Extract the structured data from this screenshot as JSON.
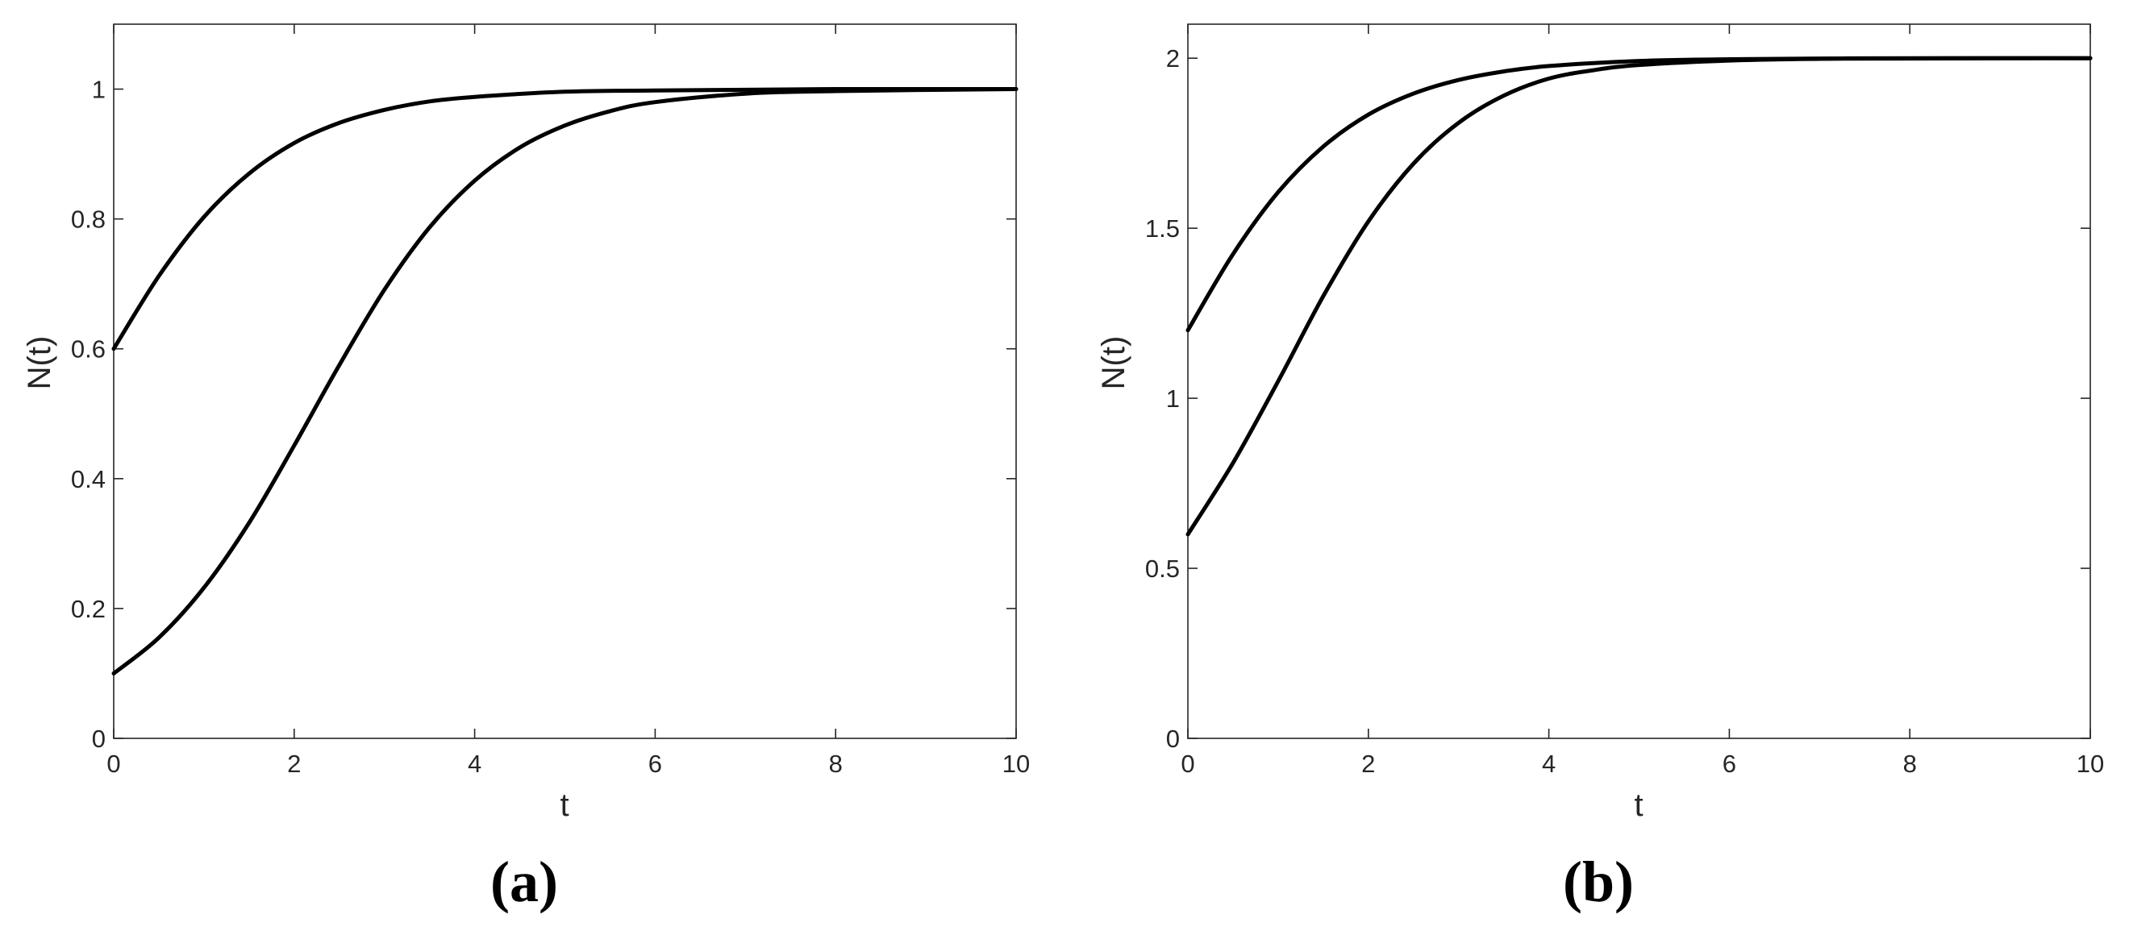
{
  "chart_data": [
    {
      "type": "line",
      "xlabel": "t",
      "ylabel": "N(t)",
      "panel_label": "(a)",
      "xlim": [
        0,
        10
      ],
      "ylim": [
        0,
        1.1
      ],
      "xticks": [
        0,
        2,
        4,
        6,
        8,
        10
      ],
      "xtick_labels": [
        "0",
        "2",
        "4",
        "6",
        "8",
        "10"
      ],
      "yticks": [
        0,
        0.2,
        0.4,
        0.6,
        0.8,
        1
      ],
      "ytick_labels": [
        "0",
        "0.2",
        "0.4",
        "0.6",
        "0.8",
        "1"
      ],
      "grid": false,
      "series": [
        {
          "color": "#000000",
          "x": [
            0,
            0.5,
            1,
            1.5,
            2,
            2.5,
            3,
            3.5,
            4,
            5,
            6,
            7,
            8,
            10
          ],
          "y": [
            0.6,
            0.712,
            0.803,
            0.87,
            0.917,
            0.948,
            0.968,
            0.981,
            0.988,
            0.996,
            0.998,
            0.999,
            1.0,
            1.0
          ]
        },
        {
          "color": "#000000",
          "x": [
            0,
            0.5,
            1,
            1.5,
            2,
            2.5,
            3,
            3.5,
            4,
            4.5,
            5,
            5.5,
            6,
            7,
            8,
            10
          ],
          "y": [
            0.1,
            0.155,
            0.232,
            0.332,
            0.451,
            0.575,
            0.691,
            0.787,
            0.859,
            0.91,
            0.944,
            0.966,
            0.98,
            0.993,
            0.997,
            1.0
          ]
        }
      ]
    },
    {
      "type": "line",
      "xlabel": "t",
      "ylabel": "N(t)",
      "panel_label": "(b)",
      "xlim": [
        0,
        10
      ],
      "ylim": [
        0,
        2.1
      ],
      "xticks": [
        0,
        2,
        4,
        6,
        8,
        10
      ],
      "xtick_labels": [
        "0",
        "2",
        "4",
        "6",
        "8",
        "10"
      ],
      "yticks": [
        0,
        0.5,
        1,
        1.5,
        2
      ],
      "ytick_labels": [
        "0",
        "0.5",
        "1",
        "1.5",
        "2"
      ],
      "grid": false,
      "series": [
        {
          "color": "#000000",
          "x": [
            0,
            0.5,
            1,
            1.5,
            2,
            2.5,
            3,
            3.5,
            4,
            5,
            6,
            7,
            8,
            10
          ],
          "y": [
            1.2,
            1.424,
            1.606,
            1.74,
            1.834,
            1.896,
            1.936,
            1.961,
            1.977,
            1.992,
            1.997,
            1.999,
            2.0,
            2.0
          ]
        },
        {
          "color": "#000000",
          "x": [
            0,
            0.5,
            1,
            1.5,
            2,
            2.5,
            3,
            3.5,
            4,
            4.5,
            5,
            6,
            7,
            8,
            10
          ],
          "y": [
            0.6,
            0.81,
            1.05,
            1.3,
            1.52,
            1.69,
            1.81,
            1.89,
            1.94,
            1.965,
            1.98,
            1.993,
            1.998,
            1.999,
            2.0
          ]
        }
      ]
    }
  ]
}
